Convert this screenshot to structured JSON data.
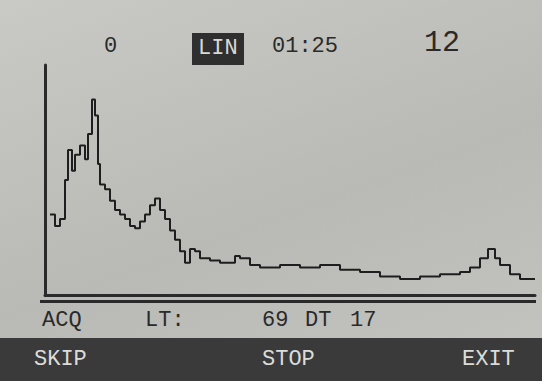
{
  "chart_data": {
    "type": "line",
    "color": "#1e1e1e",
    "grid": false,
    "tick_labels": false,
    "xlim": [
      0,
      490
    ],
    "ylim": [
      0,
      100
    ],
    "x": [
      5,
      10,
      15,
      20,
      23,
      27,
      30,
      35,
      40,
      43,
      47,
      50,
      53,
      55,
      60,
      65,
      70,
      75,
      80,
      85,
      90,
      95,
      100,
      105,
      110,
      115,
      120,
      125,
      130,
      135,
      140,
      145,
      150,
      155,
      165,
      175,
      185,
      190,
      195,
      205,
      215,
      225,
      235,
      245,
      255,
      275,
      295,
      315,
      335,
      355,
      375,
      395,
      415,
      425,
      435,
      443,
      450,
      455,
      465,
      475,
      490
    ],
    "values": [
      35,
      30,
      33,
      50,
      63,
      54,
      61,
      65,
      59,
      70,
      85,
      78,
      57,
      48,
      46,
      41,
      37,
      35,
      33,
      30,
      29,
      32,
      35,
      39,
      42,
      37,
      33,
      28,
      24,
      19,
      14,
      20,
      19,
      16,
      15,
      14,
      14,
      17,
      16,
      13,
      12,
      12,
      13,
      13,
      12,
      13,
      11,
      10,
      8,
      7,
      8,
      9,
      10,
      12,
      16,
      20,
      16,
      13,
      9,
      7,
      7
    ]
  },
  "screen": {
    "header": [
      "0",
      "LIN",
      "01:25",
      "12"
    ],
    "status": [
      "ACQ",
      "LT:",
      "69",
      "DT",
      "17"
    ],
    "menu": [
      "SKIP",
      "STOP",
      "EXIT"
    ]
  }
}
